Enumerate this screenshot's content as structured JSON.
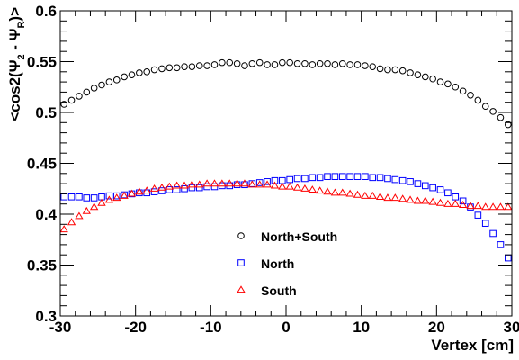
{
  "chart_data": {
    "type": "scatter",
    "xlabel": "Vertex [cm]",
    "ylabel": {
      "prefix": "<cos2(Ψ",
      "sub1": "2",
      "mid": " - Ψ",
      "sub2": "R",
      "suffix": ")>"
    },
    "xlim": [
      -30,
      30
    ],
    "ylim": [
      0.3,
      0.6
    ],
    "x_ticks": [
      -30,
      -20,
      -10,
      0,
      10,
      20,
      30
    ],
    "y_ticks": [
      0.3,
      0.35,
      0.4,
      0.45,
      0.5,
      0.55,
      0.6
    ],
    "x_tick_labels": [
      "-30",
      "-20",
      "-10",
      "0",
      "10",
      "20",
      "30"
    ],
    "y_tick_labels": [
      "0.3",
      "0.35",
      "0.4",
      "0.45",
      "0.5",
      "0.55",
      "0.6"
    ],
    "grid": false,
    "legend_position": "bottom-center",
    "x": [
      -29.5,
      -28.5,
      -27.5,
      -26.5,
      -25.5,
      -24.5,
      -23.5,
      -22.5,
      -21.5,
      -20.5,
      -19.5,
      -18.5,
      -17.5,
      -16.5,
      -15.5,
      -14.5,
      -13.5,
      -12.5,
      -11.5,
      -10.5,
      -9.5,
      -8.5,
      -7.5,
      -6.5,
      -5.5,
      -4.5,
      -3.5,
      -2.5,
      -1.5,
      -0.5,
      0.5,
      1.5,
      2.5,
      3.5,
      4.5,
      5.5,
      6.5,
      7.5,
      8.5,
      9.5,
      10.5,
      11.5,
      12.5,
      13.5,
      14.5,
      15.5,
      16.5,
      17.5,
      18.5,
      19.5,
      20.5,
      21.5,
      22.5,
      23.5,
      24.5,
      25.5,
      26.5,
      27.5,
      28.5,
      29.5
    ],
    "series": [
      {
        "name": "North+South",
        "marker": "circle",
        "color": "#000000",
        "values": [
          0.508,
          0.512,
          0.516,
          0.52,
          0.524,
          0.527,
          0.53,
          0.532,
          0.535,
          0.537,
          0.539,
          0.54,
          0.542,
          0.543,
          0.544,
          0.544,
          0.545,
          0.545,
          0.546,
          0.546,
          0.547,
          0.549,
          0.549,
          0.548,
          0.546,
          0.548,
          0.549,
          0.547,
          0.547,
          0.549,
          0.549,
          0.548,
          0.548,
          0.547,
          0.548,
          0.548,
          0.547,
          0.548,
          0.547,
          0.547,
          0.546,
          0.545,
          0.543,
          0.542,
          0.542,
          0.541,
          0.539,
          0.537,
          0.535,
          0.533,
          0.53,
          0.528,
          0.525,
          0.521,
          0.517,
          0.512,
          0.506,
          0.501,
          0.495,
          0.488
        ]
      },
      {
        "name": "North",
        "marker": "square",
        "color": "#0000ff",
        "values": [
          0.417,
          0.417,
          0.417,
          0.416,
          0.416,
          0.417,
          0.418,
          0.418,
          0.419,
          0.42,
          0.421,
          0.421,
          0.422,
          0.423,
          0.424,
          0.424,
          0.425,
          0.426,
          0.426,
          0.427,
          0.427,
          0.428,
          0.428,
          0.429,
          0.429,
          0.43,
          0.431,
          0.432,
          0.433,
          0.433,
          0.434,
          0.435,
          0.435,
          0.436,
          0.436,
          0.437,
          0.437,
          0.437,
          0.437,
          0.437,
          0.437,
          0.436,
          0.436,
          0.435,
          0.434,
          0.433,
          0.432,
          0.43,
          0.428,
          0.426,
          0.424,
          0.421,
          0.417,
          0.413,
          0.407,
          0.399,
          0.391,
          0.381,
          0.37,
          0.357
        ]
      },
      {
        "name": "South",
        "marker": "triangle",
        "color": "#ff0000",
        "values": [
          0.385,
          0.392,
          0.398,
          0.403,
          0.407,
          0.411,
          0.414,
          0.416,
          0.418,
          0.42,
          0.422,
          0.423,
          0.425,
          0.426,
          0.427,
          0.428,
          0.428,
          0.429,
          0.429,
          0.43,
          0.43,
          0.43,
          0.43,
          0.43,
          0.43,
          0.429,
          0.429,
          0.429,
          0.428,
          0.427,
          0.427,
          0.426,
          0.425,
          0.424,
          0.423,
          0.422,
          0.421,
          0.421,
          0.42,
          0.419,
          0.418,
          0.418,
          0.417,
          0.416,
          0.416,
          0.415,
          0.414,
          0.413,
          0.413,
          0.412,
          0.411,
          0.41,
          0.41,
          0.409,
          0.408,
          0.408,
          0.407,
          0.407,
          0.407,
          0.407
        ]
      }
    ]
  }
}
